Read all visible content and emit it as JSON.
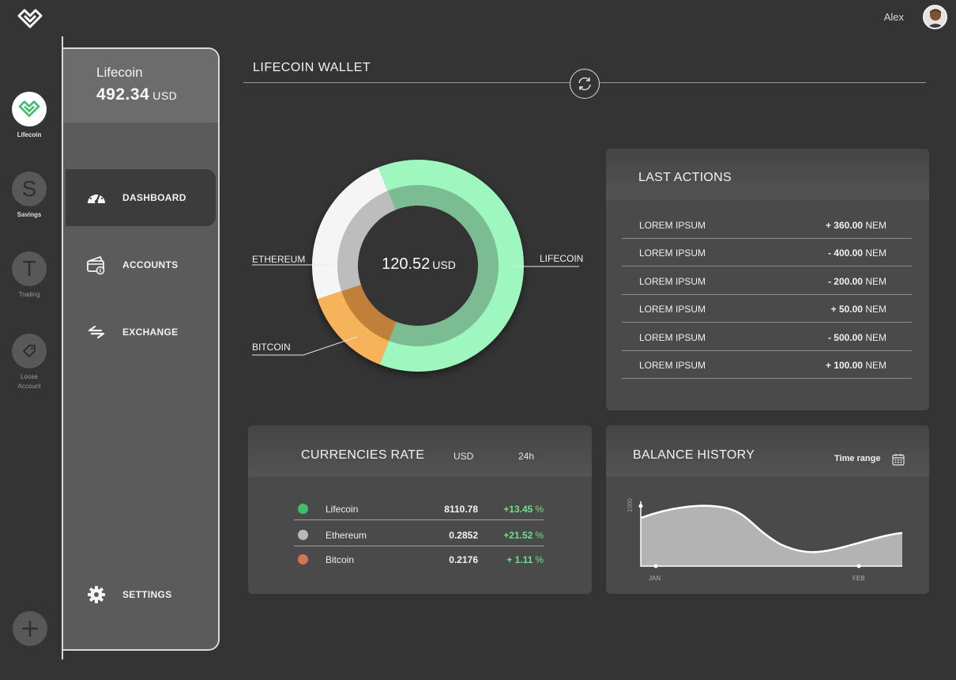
{
  "user": {
    "name": "Alex"
  },
  "rail": {
    "items": [
      {
        "letter": "",
        "label": "Lifecoin",
        "active": true
      },
      {
        "letter": "S",
        "label": "Savings",
        "active": false
      },
      {
        "letter": "T",
        "label": "Trading",
        "active": false
      },
      {
        "letter": "",
        "label": "Loose Account",
        "active": false
      }
    ]
  },
  "balance": {
    "coin": "Lifecoin",
    "amount": "492.34",
    "unit": "USD"
  },
  "nav": {
    "dashboard": "DASHBOARD",
    "accounts": "ACCOUNTS",
    "exchange": "EXCHANGE",
    "settings": "SETTINGS"
  },
  "wallet": {
    "title": "LIFECOIN WALLET",
    "total": "120.52",
    "unit": "USD",
    "labels": {
      "ethereum": "ETHEREUM",
      "lifecoin": "LIFECOIN",
      "bitcoin": "BITCOIN"
    },
    "segments": [
      {
        "name": "LIFECOIN",
        "fraction": 0.62,
        "color": "#9ef7bf"
      },
      {
        "name": "BITCOIN",
        "fraction": 0.14,
        "color": "#f7b35a"
      },
      {
        "name": "ETHEREUM",
        "fraction": 0.24,
        "color": "#f5f5f5"
      }
    ]
  },
  "last_actions": {
    "title": "LAST ACTIONS",
    "rows": [
      {
        "label": "LOREM IPSUM",
        "amount": "+ 360.00",
        "unit": "NEM"
      },
      {
        "label": "LOREM IPSUM",
        "amount": "- 400.00",
        "unit": "NEM"
      },
      {
        "label": "LOREM IPSUM",
        "amount": "- 200.00",
        "unit": "NEM"
      },
      {
        "label": "LOREM IPSUM",
        "amount": "+ 50.00",
        "unit": "NEM"
      },
      {
        "label": "LOREM IPSUM",
        "amount": "- 500.00",
        "unit": "NEM"
      },
      {
        "label": "LOREM IPSUM",
        "amount": "+ 100.00",
        "unit": "NEM"
      }
    ]
  },
  "currencies": {
    "title": "CURRENCIES RATE",
    "col_currency": "USD",
    "col_period": "24h",
    "rows": [
      {
        "name": "Lifecoin",
        "price": "8110.78",
        "change": "+13.45",
        "pct": "%",
        "color": "#3dbf6a"
      },
      {
        "name": "Ethereum",
        "price": "0.2852",
        "change": "+21.52",
        "pct": "%",
        "color": "#b8b8b8"
      },
      {
        "name": "Bitcoin",
        "price": "0.2176",
        "change": "+ 1.11",
        "pct": "%",
        "color": "#d9705a"
      }
    ]
  },
  "balance_history": {
    "title": "BALANCE HISTORY",
    "time_range": "Time range",
    "y_tick": "1000",
    "x_ticks": [
      "JAN",
      "FEB"
    ]
  },
  "colors": {
    "accent_green": "#9ef7bf",
    "bitcoin_orange": "#f7b35a",
    "positive": "#6fe08a"
  }
}
